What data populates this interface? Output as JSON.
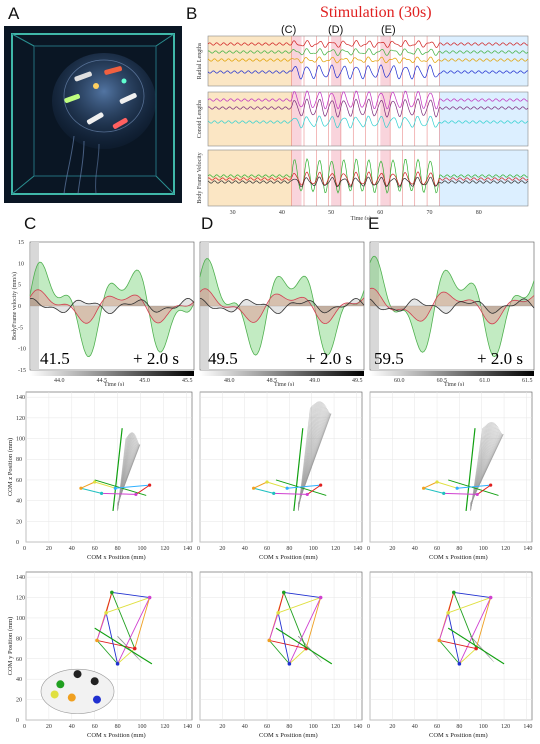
{
  "panel_labels": {
    "a": "A",
    "b": "B",
    "c": "C",
    "d": "D",
    "e": "E"
  },
  "b_panel": {
    "title": "Stimulation (30s)",
    "markers": [
      "(C)",
      "(D)",
      "(E)"
    ],
    "ylabels": [
      "Radial Lengths",
      "Conoid Lengths",
      "Body Frame Velocity"
    ],
    "xlabel": "Time (s)",
    "xticks": [
      "30",
      "40",
      "50",
      "60",
      "70",
      "80"
    ]
  },
  "velocity_panels": [
    {
      "start": "41.5",
      "window": "+ 2.0 s",
      "ticks": [
        "44.0",
        "44.5",
        "45.0",
        "45.5"
      ]
    },
    {
      "start": "49.5",
      "window": "+ 2.0 s",
      "ticks": [
        "48.0",
        "48.5",
        "49.0",
        "49.5"
      ]
    },
    {
      "start": "59.5",
      "window": "+ 2.0 s",
      "ticks": [
        "60.0",
        "60.5",
        "61.0",
        "61.5"
      ]
    }
  ],
  "velocity_axes": {
    "ylabel": "BodyFrame velocity (mm/s)",
    "xlabel": "Time (s)",
    "yticks": [
      "15",
      "10",
      "5",
      "0",
      "-5",
      "-10",
      "-15"
    ]
  },
  "com_z": {
    "ylabel": "COM z Position (mm)",
    "xlabel": "COM x Position (mm)",
    "ticks": [
      "0",
      "20",
      "40",
      "60",
      "80",
      "100",
      "120",
      "140"
    ]
  },
  "com_y": {
    "ylabel": "COM y Position (mm)",
    "xlabel": "COM x Position (mm)",
    "ticks": [
      "0",
      "20",
      "40",
      "60",
      "80",
      "100",
      "120",
      "140"
    ]
  }
}
